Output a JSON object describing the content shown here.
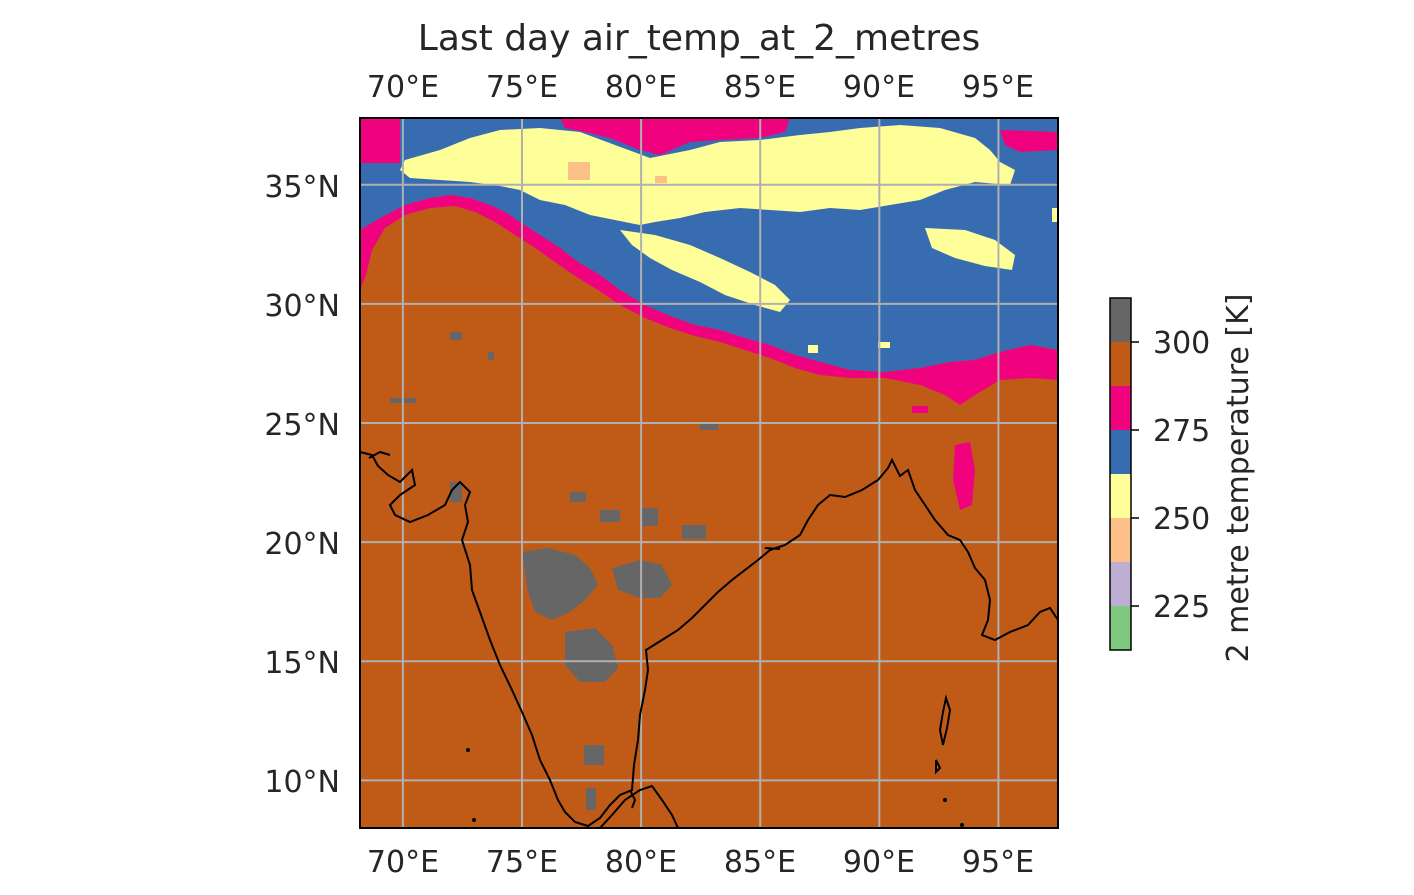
{
  "title": "Last day air_temp_at_2_metres",
  "map": {
    "lon_range": [
      68.2,
      97.5
    ],
    "lat_range": [
      8.0,
      37.8
    ],
    "lon_ticks": [
      70,
      75,
      80,
      85,
      90,
      95
    ],
    "lat_ticks": [
      10,
      15,
      20,
      25,
      30,
      35
    ],
    "lon_tick_labels": [
      "70°E",
      "75°E",
      "80°E",
      "85°E",
      "90°E",
      "95°E"
    ],
    "lat_tick_labels": [
      "10°N",
      "15°N",
      "20°N",
      "25°N",
      "30°N",
      "35°N"
    ],
    "gridlines": true,
    "coastline": true
  },
  "colorbar": {
    "label": "2 metre temperature [K]",
    "range": [
      212.5,
      312.5
    ],
    "tick_values": [
      225,
      250,
      275,
      300
    ],
    "tick_labels": [
      "225",
      "250",
      "275",
      "300"
    ],
    "bins": [
      {
        "from": 212.5,
        "to": 225.0,
        "color": "#7fc97f"
      },
      {
        "from": 225.0,
        "to": 237.5,
        "color": "#beaed4"
      },
      {
        "from": 237.5,
        "to": 250.0,
        "color": "#fdc086"
      },
      {
        "from": 250.0,
        "to": 262.5,
        "color": "#ffff99"
      },
      {
        "from": 262.5,
        "to": 275.0,
        "color": "#386cb0"
      },
      {
        "from": 275.0,
        "to": 287.5,
        "color": "#f0027f"
      },
      {
        "from": 287.5,
        "to": 300.0,
        "color": "#bf5b17"
      },
      {
        "from": 300.0,
        "to": 312.5,
        "color": "#666666"
      }
    ]
  }
}
